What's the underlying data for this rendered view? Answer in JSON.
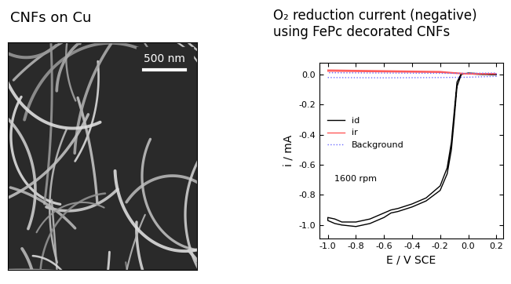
{
  "image_panel": {
    "title": "CNFs on Cu",
    "scale_bar": "500 nm"
  },
  "chart_data": {
    "type": "line",
    "title": "O₂ reduction current (negative)\nusing FePc decorated CNFs",
    "x_label": "E / V SCE",
    "y_label": "i / mA",
    "annotation": "1600 rpm",
    "xlim": [
      -1.06,
      0.25
    ],
    "ylim": [
      -1.09,
      0.08
    ],
    "xticks": [
      -1.0,
      -0.8,
      -0.6,
      -0.4,
      -0.2,
      0.0,
      0.2
    ],
    "yticks": [
      -1.0,
      -0.8,
      -0.6,
      -0.4,
      -0.2,
      0.0
    ],
    "legend": "center left",
    "series": [
      {
        "name": "id",
        "color": "#000000",
        "line_style": "solid",
        "x": [
          0.2,
          0.1,
          0.0,
          -0.05,
          -0.08,
          -0.1,
          -0.12,
          -0.15,
          -0.2,
          -0.3,
          -0.4,
          -0.5,
          -0.55,
          -0.6,
          -0.7,
          -0.8,
          -0.9,
          -0.95,
          -1.0,
          -1.0,
          -0.95,
          -0.9,
          -0.8,
          -0.7,
          -0.6,
          -0.55,
          -0.5,
          -0.4,
          -0.3,
          -0.2,
          -0.15,
          -0.12,
          -0.1,
          -0.08,
          -0.05,
          0.0,
          0.1,
          0.2
        ],
        "values": [
          0.0,
          0.0,
          0.005,
          0.005,
          -0.05,
          -0.25,
          -0.45,
          -0.62,
          -0.74,
          -0.82,
          -0.86,
          -0.89,
          -0.9,
          -0.92,
          -0.96,
          -0.98,
          -0.98,
          -0.96,
          -0.95,
          -0.97,
          -0.99,
          -1.0,
          -1.01,
          -0.99,
          -0.95,
          -0.92,
          -0.91,
          -0.88,
          -0.84,
          -0.77,
          -0.66,
          -0.5,
          -0.3,
          -0.08,
          0.0,
          0.01,
          0.005,
          0.0
        ]
      },
      {
        "name": "ir",
        "color": "#ff5a5a",
        "line_style": "solid",
        "x": [
          -1.0,
          -0.6,
          -0.2,
          -0.1,
          0.0,
          0.2,
          0.2,
          0.0,
          -0.1,
          -0.2,
          -0.6,
          -1.0
        ],
        "values": [
          0.03,
          0.025,
          0.02,
          0.012,
          0.006,
          0.005,
          0.003,
          0.003,
          0.008,
          0.014,
          0.018,
          0.022
        ]
      },
      {
        "name": "Background",
        "color": "#6b6bff",
        "line_style": "dotted",
        "x": [
          -1.0,
          -0.6,
          -0.2,
          0.0,
          0.2,
          0.2,
          0.0,
          -0.2,
          -0.6,
          -1.0
        ],
        "values": [
          -0.02,
          -0.022,
          -0.02,
          -0.018,
          -0.012,
          0.01,
          0.008,
          0.008,
          0.01,
          0.012
        ]
      }
    ]
  }
}
